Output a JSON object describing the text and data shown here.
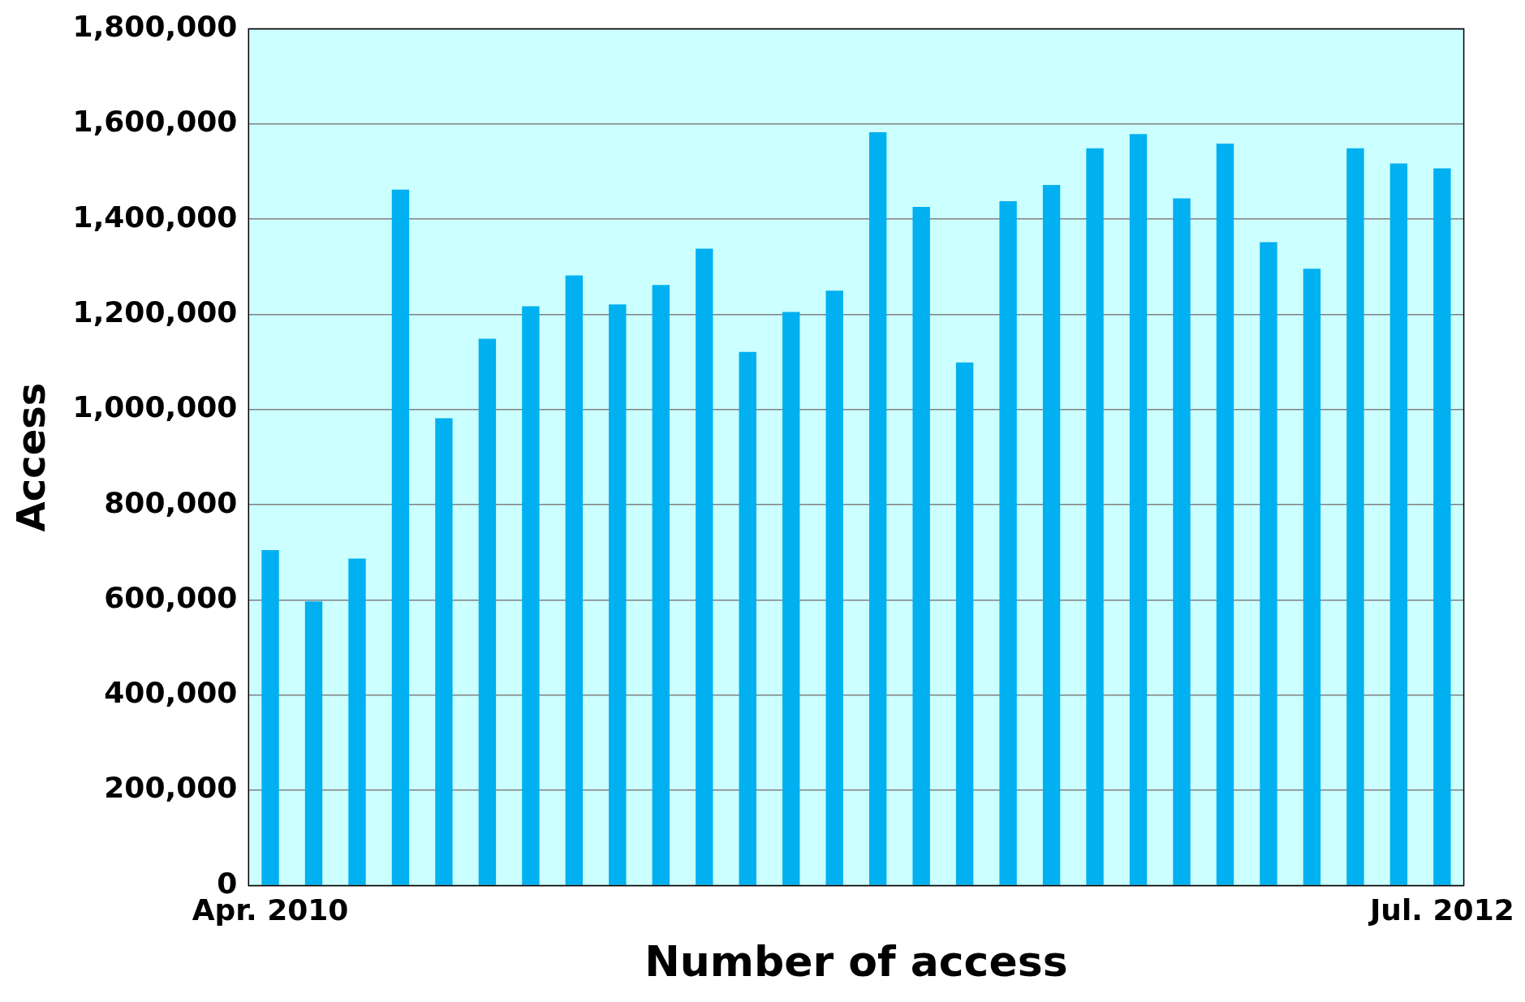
{
  "chart_data": {
    "type": "bar",
    "xlabel": "Number of access",
    "ylabel": "Access",
    "categories": [
      "Apr. 2010",
      null,
      null,
      null,
      null,
      null,
      null,
      null,
      null,
      null,
      null,
      null,
      null,
      null,
      null,
      null,
      null,
      null,
      null,
      null,
      null,
      null,
      null,
      null,
      null,
      null,
      null,
      "Jul. 2012"
    ],
    "values": [
      705000,
      597000,
      687000,
      1462000,
      982000,
      1149000,
      1217000,
      1282000,
      1221000,
      1262000,
      1338000,
      1121000,
      1205000,
      1250000,
      1583000,
      1426000,
      1099000,
      1438000,
      1472000,
      1549000,
      1579000,
      1444000,
      1559000,
      1352000,
      1296000,
      1549000,
      1517000,
      1507000
    ],
    "color": "#00b0f0",
    "ylim": [
      0,
      1800000
    ],
    "yticks": [
      0,
      {
        "value": 200000,
        "label": "200,000"
      },
      {
        "value": 400000,
        "label": "400,000"
      },
      {
        "value": 600000,
        "label": "600,000"
      },
      {
        "value": 800000,
        "label": "800,000"
      },
      {
        "value": 1000000,
        "label": "1,000,000"
      },
      {
        "value": 1200000,
        "label": "1,200,000"
      },
      {
        "value": 1400000,
        "label": "1,400,000"
      },
      {
        "value": 1600000,
        "label": "1,600,000"
      },
      {
        "value": 1800000,
        "label": "1,800,000"
      }
    ],
    "grid": "y",
    "legend": false
  }
}
